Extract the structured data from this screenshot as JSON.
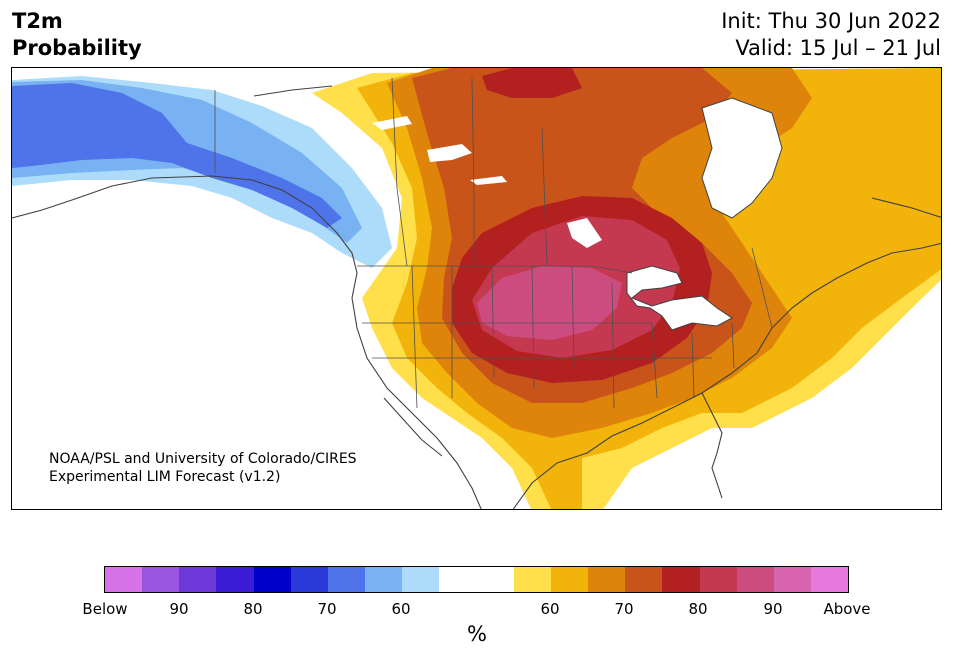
{
  "title": {
    "line1": "T2m",
    "line2": "Probability"
  },
  "forecast": {
    "init": "Init: Thu 30 Jun 2022",
    "valid": "Valid: 15 Jul – 21 Jul"
  },
  "credit": {
    "line1": "NOAA/PSL and University of Colorado/CIRES",
    "line2": "Experimental LIM Forecast (v1.2)"
  },
  "colorbar": {
    "colors": [
      "#d673e8",
      "#9a55e0",
      "#6e38d8",
      "#3a1bd6",
      "#0000cc",
      "#2a3ad8",
      "#4f73e8",
      "#78b2f2",
      "#acdcfa",
      "#ffffff",
      "#ffffff",
      "#ffe04a",
      "#f2b40a",
      "#de840a",
      "#c8541a",
      "#b22020",
      "#c43850",
      "#cc4c80",
      "#d864b0",
      "#e878de"
    ],
    "labels": [
      "Below",
      "90",
      "80",
      "70",
      "60",
      "60",
      "70",
      "80",
      "90",
      "Above"
    ],
    "unit": "%"
  },
  "map_palette": {
    "cold_deep": "#4f73e8",
    "cold_mid": "#78b2f2",
    "cold_light": "#acdcfa",
    "warm_1": "#ffe04a",
    "warm_2": "#f2b40a",
    "warm_3": "#de840a",
    "warm_4": "#c8541a",
    "warm_5": "#b22020",
    "warm_6": "#c43850",
    "warm_7": "#cc4c80",
    "border": "#404040",
    "land_boundary": "#505050"
  }
}
